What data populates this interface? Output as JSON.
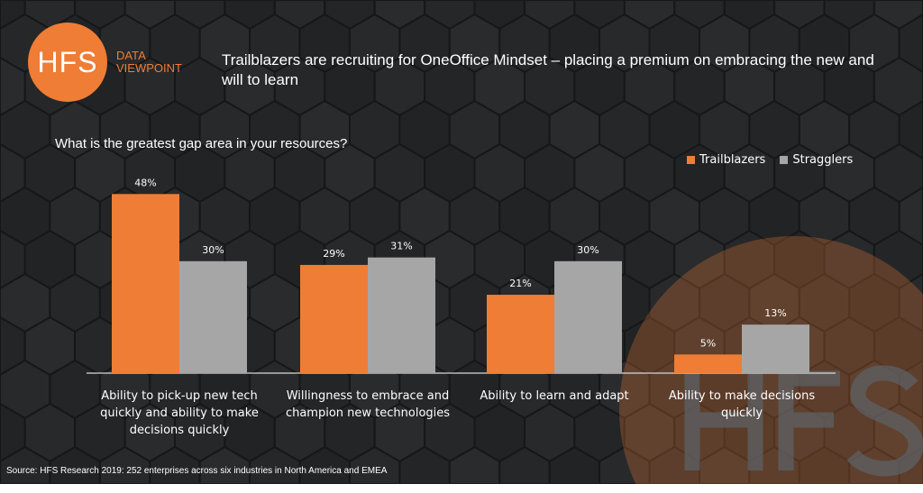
{
  "logo": {
    "text": "HFS",
    "subtitle_line1": "DATA",
    "subtitle_line2": "VIEWPOINT",
    "watermark": "HFS"
  },
  "title": "Trailblazers are recruiting for OneOffice Mindset – placing a premium on embracing the new and will to learn",
  "source": "Source: HFS Research 2019: 252 enterprises across six industries in North America and EMEA",
  "colors": {
    "background": "#242527",
    "trailblazers": "#ef7d35",
    "stragglers": "#a6a6a6",
    "brand": "#ef7d35"
  },
  "chart_data": {
    "type": "bar",
    "title": "What is the greatest gap area in your resources?",
    "categories": [
      [
        "Ability to pick-up new tech",
        "quickly and ability to make",
        "decisions quickly"
      ],
      [
        "Willingness to embrace and",
        "champion new technologies"
      ],
      [
        "Ability to learn and adapt"
      ],
      [
        "Ability to make decisions",
        "quickly"
      ]
    ],
    "series": [
      {
        "name": "Trailblazers",
        "values": [
          48,
          29,
          21,
          5
        ],
        "color": "#ef7d35"
      },
      {
        "name": "Stragglers",
        "values": [
          30,
          31,
          30,
          13
        ],
        "color": "#a6a6a6"
      }
    ],
    "unit": "%",
    "ylim": [
      0,
      50
    ],
    "grid": false,
    "legend": "top-right"
  }
}
